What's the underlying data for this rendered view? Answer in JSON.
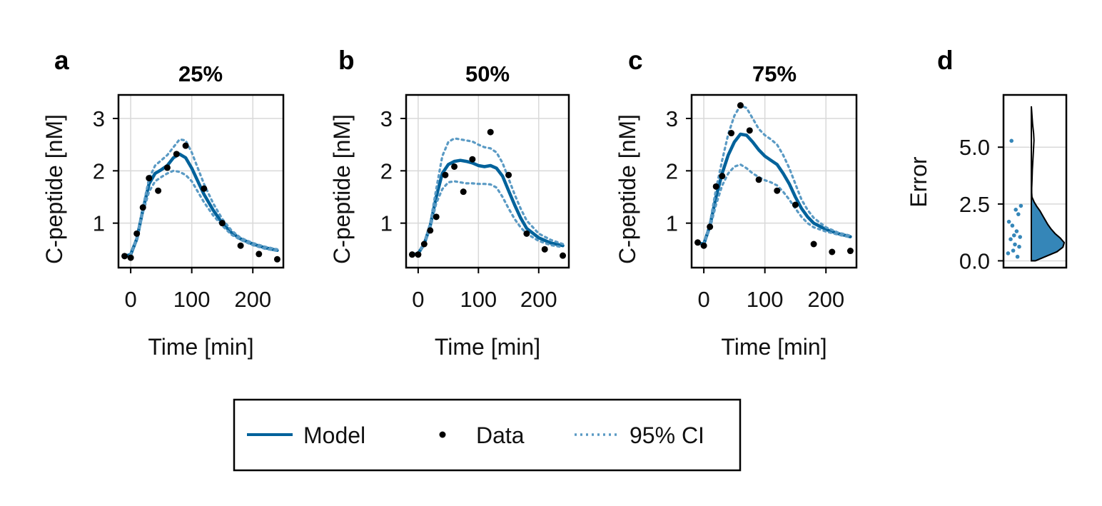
{
  "colors": {
    "model": "#00629b",
    "data": "#000000",
    "ci": "#5a9ac4",
    "violin": "#3586b8",
    "grid": "#d9d9d9"
  },
  "legend": {
    "items": [
      {
        "label": "Model"
      },
      {
        "label": "Data"
      },
      {
        "label": "95% CI"
      }
    ]
  },
  "chart_data": [
    {
      "type": "line",
      "panel": "a",
      "title": "25%",
      "xlabel": "Time [min]",
      "ylabel": "C-peptide [nM]",
      "xlim": [
        -20,
        250
      ],
      "ylim": [
        0.15,
        3.45
      ],
      "xticks": [
        0,
        100,
        200
      ],
      "yticks": [
        1,
        2,
        3
      ],
      "series": [
        {
          "name": "Model",
          "x": [
            -10,
            0,
            10,
            20,
            30,
            40,
            50,
            60,
            70,
            80,
            90,
            100,
            110,
            120,
            135,
            150,
            165,
            180,
            200,
            220,
            240
          ],
          "y": [
            0.37,
            0.4,
            0.7,
            1.25,
            1.75,
            1.95,
            2.02,
            2.1,
            2.25,
            2.32,
            2.25,
            2.05,
            1.8,
            1.55,
            1.25,
            1.0,
            0.82,
            0.7,
            0.6,
            0.53,
            0.48
          ]
        },
        {
          "name": "CI lower",
          "x": [
            -10,
            0,
            10,
            20,
            30,
            40,
            50,
            60,
            70,
            80,
            90,
            100,
            110,
            120,
            135,
            150,
            165,
            180,
            200,
            220,
            240
          ],
          "y": [
            0.37,
            0.4,
            0.68,
            1.2,
            1.6,
            1.8,
            1.88,
            1.95,
            2.0,
            1.98,
            1.92,
            1.8,
            1.6,
            1.4,
            1.15,
            0.95,
            0.78,
            0.68,
            0.58,
            0.51,
            0.47
          ]
        },
        {
          "name": "CI upper",
          "x": [
            -10,
            0,
            10,
            20,
            30,
            40,
            50,
            60,
            70,
            80,
            90,
            100,
            110,
            120,
            135,
            150,
            165,
            180,
            200,
            220,
            240
          ],
          "y": [
            0.37,
            0.4,
            0.72,
            1.3,
            1.85,
            2.1,
            2.2,
            2.3,
            2.45,
            2.6,
            2.58,
            2.35,
            2.05,
            1.75,
            1.38,
            1.08,
            0.86,
            0.72,
            0.62,
            0.55,
            0.5
          ]
        },
        {
          "name": "Data",
          "x": [
            -10,
            0,
            10,
            20,
            30,
            45,
            60,
            75,
            90,
            120,
            150,
            180,
            210,
            240
          ],
          "y": [
            0.37,
            0.34,
            0.8,
            1.3,
            1.86,
            1.62,
            2.06,
            2.32,
            2.48,
            1.66,
            1.0,
            0.57,
            0.41,
            0.31
          ]
        }
      ]
    },
    {
      "type": "line",
      "panel": "b",
      "title": "50%",
      "xlabel": "Time [min]",
      "ylabel": "C-peptide [nM]",
      "xlim": [
        -20,
        250
      ],
      "ylim": [
        0.15,
        3.45
      ],
      "xticks": [
        0,
        100,
        200
      ],
      "yticks": [
        1,
        2,
        3
      ],
      "series": [
        {
          "name": "Model",
          "x": [
            -10,
            0,
            10,
            20,
            30,
            40,
            50,
            60,
            70,
            80,
            90,
            100,
            110,
            120,
            130,
            140,
            150,
            160,
            170,
            180,
            200,
            220,
            240
          ],
          "y": [
            0.4,
            0.42,
            0.6,
            0.95,
            1.5,
            1.95,
            2.12,
            2.18,
            2.2,
            2.18,
            2.15,
            2.1,
            2.08,
            2.1,
            2.05,
            1.9,
            1.62,
            1.35,
            1.1,
            0.9,
            0.72,
            0.62,
            0.57
          ]
        },
        {
          "name": "CI lower",
          "x": [
            -10,
            0,
            10,
            20,
            30,
            40,
            50,
            60,
            70,
            80,
            90,
            100,
            110,
            120,
            130,
            140,
            150,
            160,
            170,
            180,
            200,
            220,
            240
          ],
          "y": [
            0.4,
            0.42,
            0.58,
            0.9,
            1.38,
            1.65,
            1.78,
            1.8,
            1.78,
            1.76,
            1.76,
            1.75,
            1.75,
            1.74,
            1.68,
            1.5,
            1.28,
            1.08,
            0.92,
            0.8,
            0.66,
            0.58,
            0.54
          ]
        },
        {
          "name": "CI upper",
          "x": [
            -10,
            0,
            10,
            20,
            30,
            40,
            50,
            60,
            70,
            80,
            90,
            100,
            110,
            120,
            130,
            140,
            150,
            160,
            170,
            180,
            200,
            220,
            240
          ],
          "y": [
            0.4,
            0.42,
            0.63,
            1.0,
            1.65,
            2.28,
            2.55,
            2.62,
            2.6,
            2.58,
            2.56,
            2.5,
            2.45,
            2.43,
            2.35,
            2.15,
            1.85,
            1.55,
            1.28,
            1.05,
            0.8,
            0.68,
            0.6
          ]
        },
        {
          "name": "Data",
          "x": [
            -10,
            0,
            10,
            20,
            30,
            45,
            60,
            75,
            90,
            120,
            150,
            180,
            210,
            240
          ],
          "y": [
            0.4,
            0.4,
            0.6,
            0.86,
            1.12,
            1.92,
            2.08,
            1.6,
            2.22,
            2.74,
            1.92,
            0.8,
            0.5,
            0.38
          ]
        }
      ]
    },
    {
      "type": "line",
      "panel": "c",
      "title": "75%",
      "xlabel": "Time [min]",
      "ylabel": "C-peptide [nM]",
      "xlim": [
        -20,
        250
      ],
      "ylim": [
        0.15,
        3.45
      ],
      "xticks": [
        0,
        100,
        200
      ],
      "yticks": [
        1,
        2,
        3
      ],
      "series": [
        {
          "name": "Model",
          "x": [
            -10,
            0,
            10,
            20,
            30,
            40,
            50,
            60,
            70,
            80,
            90,
            100,
            110,
            120,
            130,
            140,
            150,
            160,
            170,
            180,
            200,
            220,
            240
          ],
          "y": [
            0.62,
            0.6,
            0.95,
            1.5,
            1.95,
            2.3,
            2.55,
            2.7,
            2.68,
            2.55,
            2.4,
            2.28,
            2.2,
            2.12,
            1.95,
            1.75,
            1.5,
            1.28,
            1.12,
            1.0,
            0.88,
            0.8,
            0.74
          ]
        },
        {
          "name": "CI lower",
          "x": [
            -10,
            0,
            10,
            20,
            30,
            40,
            50,
            60,
            70,
            80,
            90,
            100,
            110,
            120,
            130,
            140,
            150,
            160,
            170,
            180,
            200,
            220,
            240
          ],
          "y": [
            0.62,
            0.6,
            0.9,
            1.35,
            1.72,
            1.95,
            2.08,
            2.12,
            2.05,
            1.95,
            1.88,
            1.82,
            1.78,
            1.72,
            1.6,
            1.45,
            1.28,
            1.12,
            1.0,
            0.92,
            0.84,
            0.78,
            0.73
          ]
        },
        {
          "name": "CI upper",
          "x": [
            -10,
            0,
            10,
            20,
            30,
            40,
            50,
            60,
            70,
            80,
            90,
            100,
            110,
            120,
            130,
            140,
            150,
            160,
            170,
            180,
            200,
            220,
            240
          ],
          "y": [
            0.62,
            0.6,
            1.0,
            1.65,
            2.2,
            2.7,
            3.05,
            3.25,
            3.2,
            3.0,
            2.8,
            2.68,
            2.6,
            2.5,
            2.3,
            2.05,
            1.75,
            1.45,
            1.25,
            1.1,
            0.92,
            0.82,
            0.76
          ]
        },
        {
          "name": "Data",
          "x": [
            -10,
            0,
            10,
            20,
            30,
            45,
            60,
            75,
            90,
            120,
            150,
            180,
            210,
            240
          ],
          "y": [
            0.63,
            0.57,
            0.93,
            1.7,
            1.9,
            2.72,
            3.25,
            2.77,
            1.83,
            1.62,
            1.35,
            0.6,
            0.45,
            0.47
          ]
        }
      ]
    },
    {
      "type": "violin",
      "panel": "d",
      "ylabel": "Error",
      "ylim": [
        -0.3,
        7.3
      ],
      "yticks": [
        0.0,
        2.5,
        5.0
      ],
      "yticklabels": [
        "0.0",
        "2.5",
        "5.0"
      ],
      "points": [
        5.28,
        2.42,
        2.25,
        2.05,
        1.72,
        1.55,
        1.3,
        1.12,
        1.05,
        0.95,
        0.72,
        0.62,
        0.45,
        0.33,
        0.18
      ],
      "density": {
        "y": [
          0.0,
          0.2,
          0.4,
          0.6,
          0.8,
          1.0,
          1.2,
          1.4,
          1.6,
          1.8,
          2.0,
          2.2,
          2.4,
          2.6,
          2.8,
          3.0,
          3.2,
          3.5,
          4.0,
          4.5,
          5.0,
          5.3,
          5.6,
          6.0,
          6.4,
          6.8
        ],
        "w": [
          0.12,
          0.45,
          0.78,
          0.96,
          1.0,
          0.88,
          0.72,
          0.6,
          0.5,
          0.42,
          0.34,
          0.26,
          0.16,
          0.08,
          0.02,
          0.01,
          0.01,
          0.02,
          0.03,
          0.05,
          0.07,
          0.08,
          0.07,
          0.04,
          0.02,
          0.0
        ]
      }
    }
  ]
}
